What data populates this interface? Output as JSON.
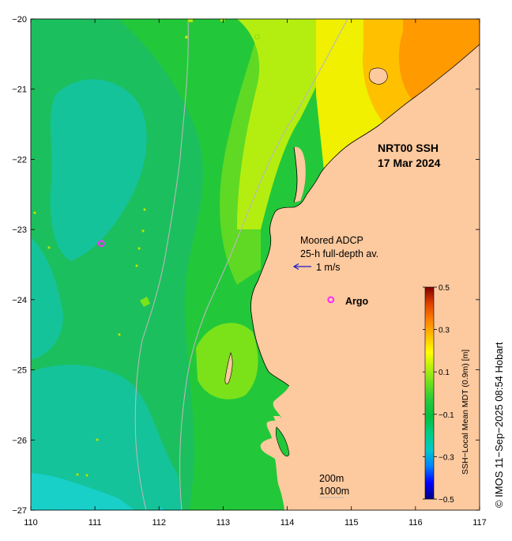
{
  "map": {
    "title_line1": "NRT00 SSH",
    "title_line2": "17 Mar 2024",
    "x_ticks": [
      "110",
      "111",
      "112",
      "113",
      "114",
      "115",
      "116",
      "117"
    ],
    "y_ticks": [
      "−20",
      "−21",
      "−22",
      "−23",
      "−24",
      "−25",
      "−26",
      "−27"
    ],
    "lon_range": [
      110,
      117
    ],
    "lat_range": [
      -27,
      -20
    ],
    "land_color": "#fdc99e",
    "ocean_base_color": "#22c83a",
    "isobath_color": "#b8b8b8",
    "argo_color": "#ff2aff",
    "vector_color": "#1a1acc",
    "argo_location": {
      "lon": 111.1,
      "lat": -23.2
    },
    "argo_legend_location": {
      "lon": 114.68,
      "lat": -24.0
    },
    "argo_label": "Argo"
  },
  "adcp_legend": {
    "line1": "Moored ADCP",
    "line2": "25-h full-depth av.",
    "scale_label": "1 m/s"
  },
  "isobath_legend": {
    "line1": "200m",
    "line2": "1000m"
  },
  "colorbar": {
    "label": "SSH−Local Mean MDT (0.9m) [m]",
    "range": [
      -0.5,
      0.5
    ],
    "ticks": [
      "0.5",
      "0.3",
      "0.1",
      "−0.1",
      "−0.3",
      "−0.5"
    ],
    "colors": [
      "#000080",
      "#0000ff",
      "#0080ff",
      "#00c8c8",
      "#00cc88",
      "#00c040",
      "#22c83a",
      "#66dd22",
      "#b4ee10",
      "#ffff00",
      "#ffc000",
      "#ff8000",
      "#e04000",
      "#800000"
    ]
  },
  "credit": "© IMOS 11−Sep−2025 08:54 Hobart"
}
